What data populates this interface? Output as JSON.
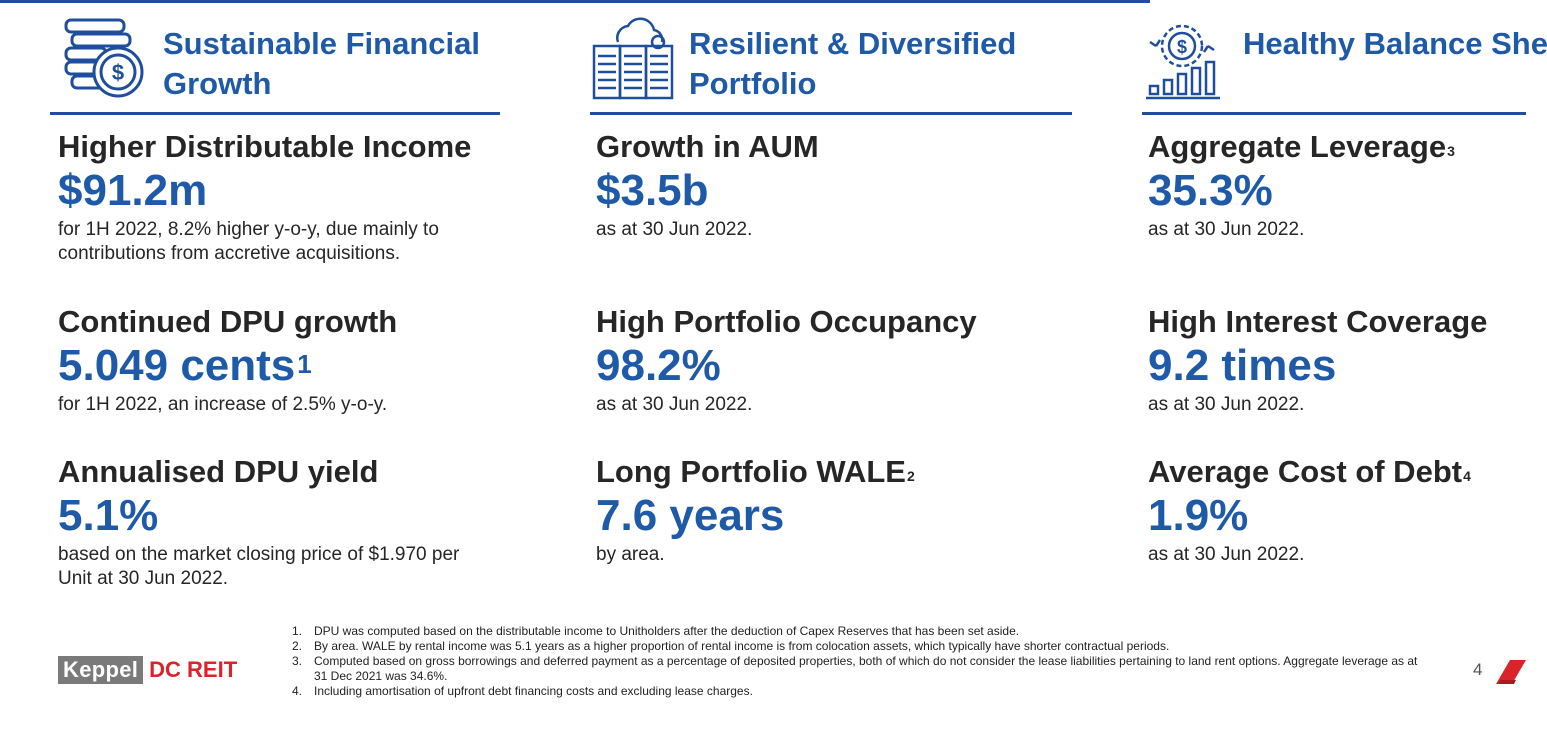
{
  "colors": {
    "accent": "#1f5aa8",
    "rule": "#1f4e9c",
    "brand_red": "#d9242a",
    "logo_gray": "#7a7a7a"
  },
  "columns": [
    {
      "icon": "coins-dollar-icon",
      "title": "Sustainable Financial Growth",
      "metrics": [
        {
          "label": "Higher Distributable Income",
          "sup": "",
          "value": "$91.2m",
          "value_sup": "",
          "desc": "for 1H 2022, 8.2% higher y-o-y, due mainly to contributions from accretive acquisitions."
        },
        {
          "label": "Continued DPU growth",
          "sup": "",
          "value": "5.049 cents",
          "value_sup": "1",
          "desc": "for 1H 2022, an increase of 2.5% y-o-y."
        },
        {
          "label": "Annualised DPU yield",
          "sup": "",
          "value": "5.1%",
          "value_sup": "",
          "desc": "based on the market closing price of $1.970 per Unit at 30 Jun 2022."
        }
      ]
    },
    {
      "icon": "cloud-server-icon",
      "title": "Resilient & Diversified Portfolio",
      "metrics": [
        {
          "label": "Growth in AUM",
          "sup": "",
          "value": "$3.5b",
          "value_sup": "",
          "desc": "as at 30 Jun 2022."
        },
        {
          "label": "High Portfolio Occupancy",
          "sup": "",
          "value": "98.2%",
          "value_sup": "",
          "desc": "as at 30 Jun 2022."
        },
        {
          "label": "Long Portfolio WALE",
          "sup": "2",
          "value": "7.6 years",
          "value_sup": "",
          "desc": "by area."
        }
      ]
    },
    {
      "icon": "gear-dollar-bar-chart-icon",
      "title": "Healthy Balance Sheet",
      "metrics": [
        {
          "label": "Aggregate Leverage",
          "sup": "3",
          "value": "35.3%",
          "value_sup": "",
          "desc": "as at 30 Jun 2022."
        },
        {
          "label": "High Interest Coverage",
          "sup": "",
          "value": "9.2 times",
          "value_sup": "",
          "desc": "as at 30 Jun 2022."
        },
        {
          "label": "Average Cost of Debt",
          "sup": "4",
          "value": "1.9%",
          "value_sup": "",
          "desc": "as at 30 Jun 2022."
        }
      ]
    }
  ],
  "footnotes": [
    {
      "num": "1.",
      "text": "DPU was computed based on the distributable income to Unitholders after the deduction of Capex Reserves that has been set aside."
    },
    {
      "num": "2.",
      "text": "By area. WALE by rental income was 5.1 years as a higher proportion of rental income is from colocation assets, which typically have shorter contractual periods."
    },
    {
      "num": "3.",
      "text": "Computed based on gross borrowings and deferred payment as a percentage of deposited properties, both of which do not consider the lease liabilities pertaining to land rent options. Aggregate leverage as at 31 Dec 2021 was 34.6%."
    },
    {
      "num": "4.",
      "text": "Including amortisation of upfront debt financing costs and excluding lease charges."
    }
  ],
  "logo": {
    "part1": "Keppel",
    "part2": "DC REIT"
  },
  "page_number": "4"
}
